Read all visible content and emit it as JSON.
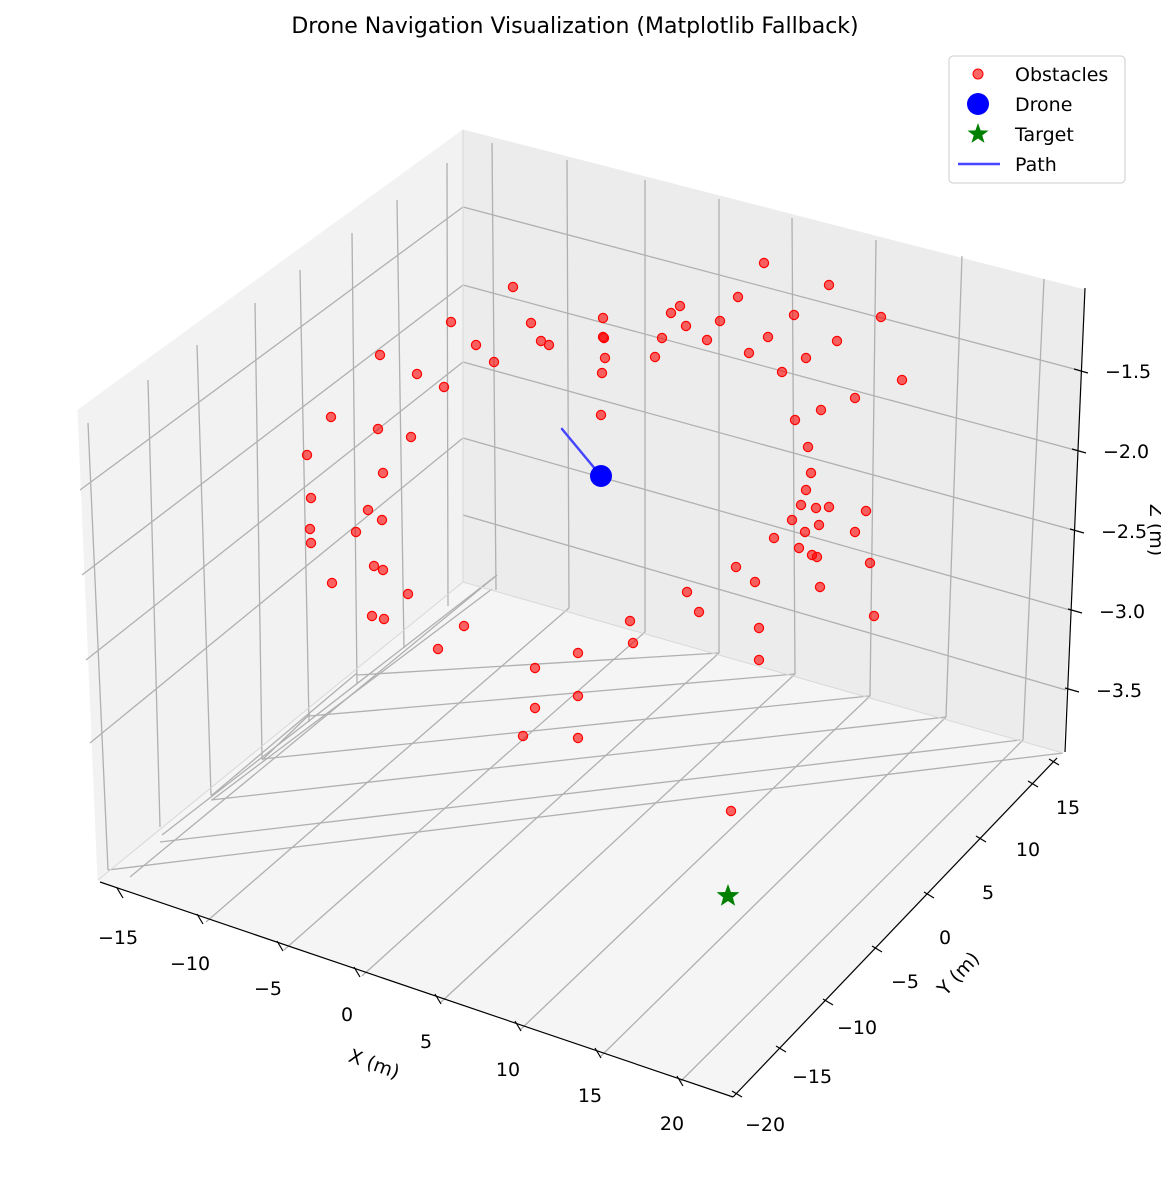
{
  "chart_data": {
    "type": "scatter",
    "title": "Drone Navigation Visualization (Matplotlib Fallback)",
    "xlabel": "X (m)",
    "ylabel": "Y (m)",
    "zlabel": "Z (m)",
    "x_ticks": [
      "−15",
      "−10",
      "−5",
      "0",
      "5",
      "10",
      "15",
      "20"
    ],
    "y_ticks": [
      "−20",
      "−15",
      "−10",
      "−5",
      "0",
      "5",
      "10",
      "15"
    ],
    "z_ticks": [
      "−3.5",
      "−3.0",
      "−2.5",
      "−2.0",
      "−1.5"
    ],
    "grid": true,
    "legend_position": "top-right",
    "colors": {
      "obstacles": "#ff0000",
      "drone": "#0000ff",
      "target": "#008000",
      "path": "#4646ff"
    },
    "legend": [
      {
        "label": "Obstacles",
        "marker": "circle-small"
      },
      {
        "label": "Drone",
        "marker": "circle-large"
      },
      {
        "label": "Target",
        "marker": "star"
      },
      {
        "label": "Path",
        "marker": "line"
      }
    ]
  }
}
